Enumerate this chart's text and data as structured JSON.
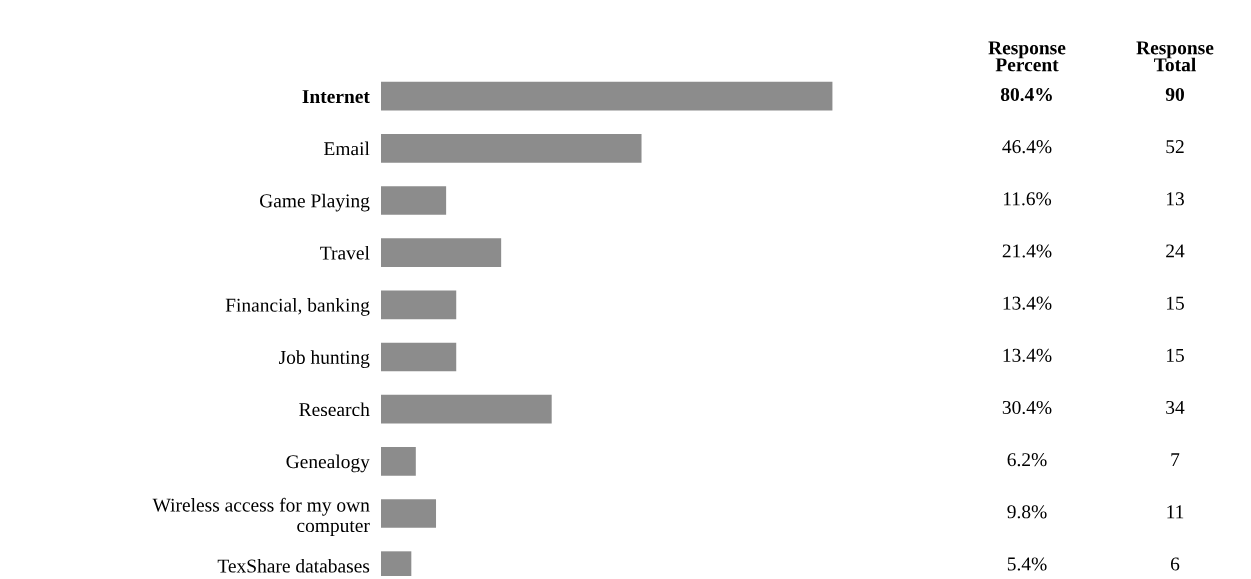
{
  "chart_data": {
    "type": "bar",
    "orientation": "horizontal",
    "categories": [
      "Internet",
      "Email",
      "Game Playing",
      "Travel",
      "Financial, banking",
      "Job hunting",
      "Research",
      "Genealogy",
      "Wireless access for my own\ncomputer",
      "TexShare databases"
    ],
    "values": [
      80.4,
      46.4,
      11.6,
      21.4,
      13.4,
      13.4,
      30.4,
      6.2,
      9.8,
      5.4
    ],
    "value_labels": [
      "80.4%",
      "46.4%",
      "11.6%",
      "21.4%",
      "13.4%",
      "13.4%",
      "30.4%",
      "6.2%",
      "9.8%",
      "5.4%"
    ],
    "color": "#8c8c8c",
    "tick_labels": "y",
    "grid": false,
    "legend": false,
    "annotations": [
      "Response\nPercent",
      "Response\nTotal",
      "90",
      "52",
      "13",
      "24",
      "15",
      "15",
      "34",
      "7",
      "11",
      "6"
    ]
  }
}
